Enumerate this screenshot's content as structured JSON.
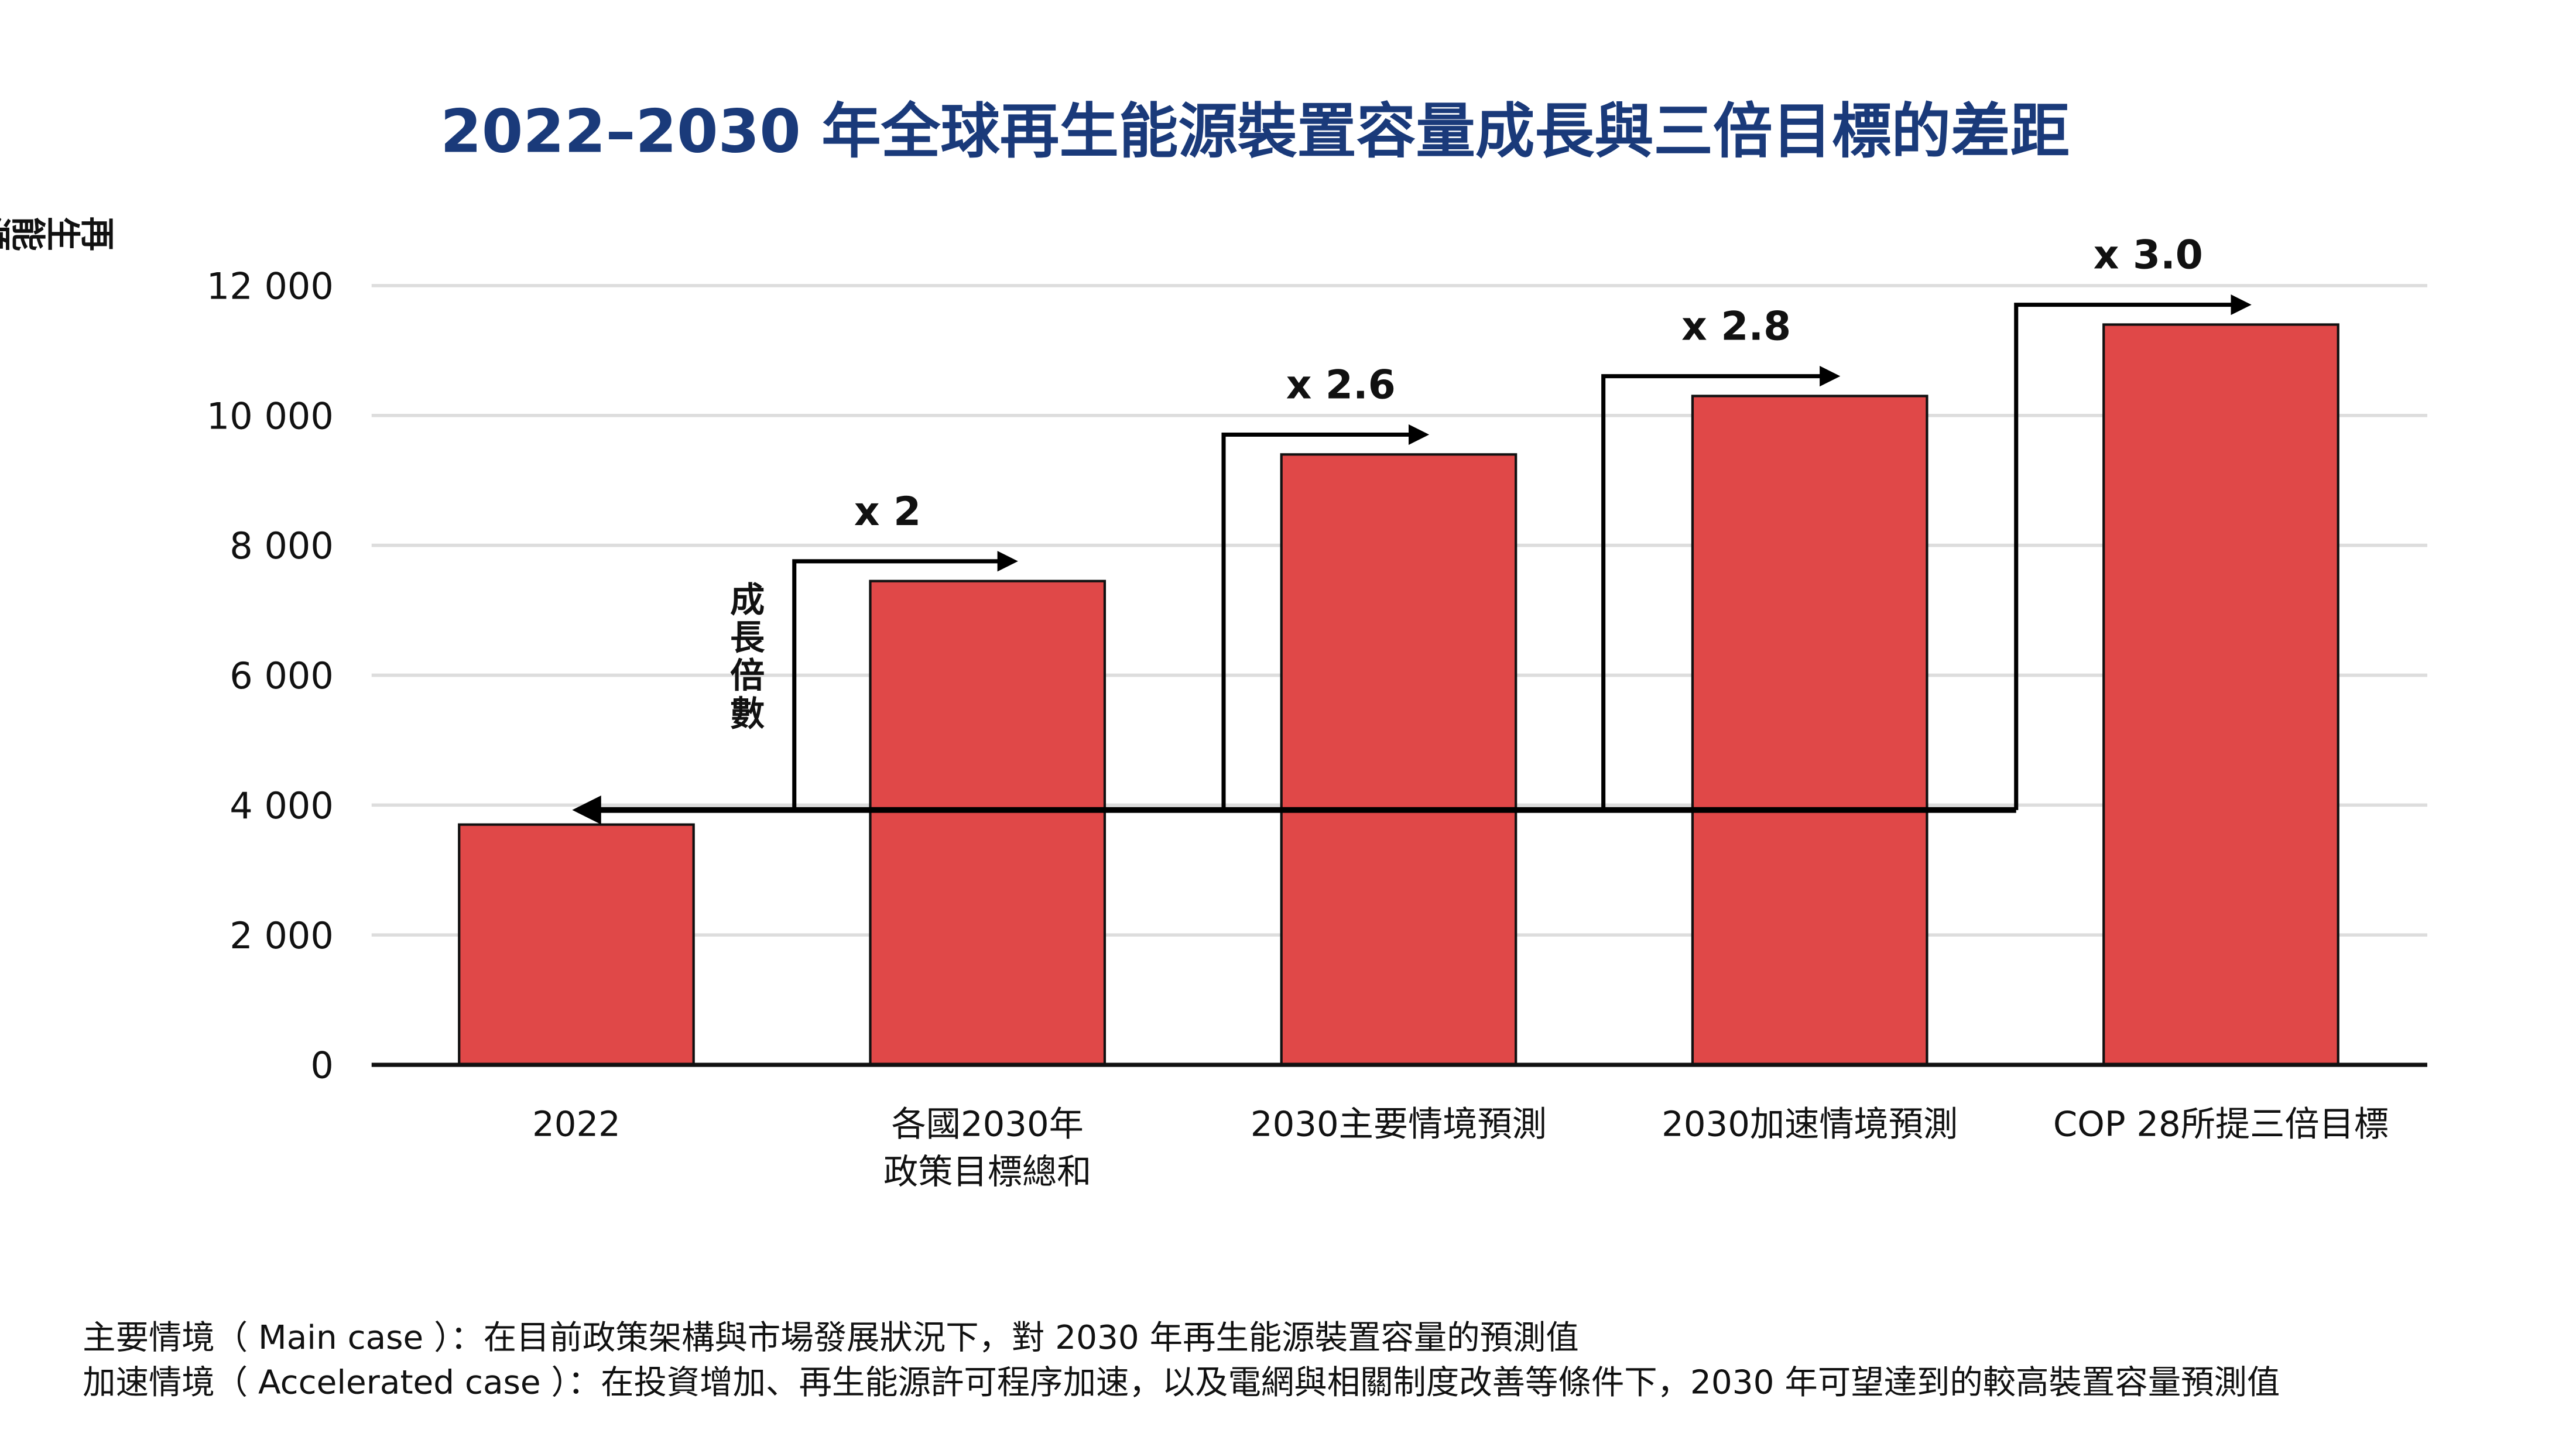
{
  "chart_data": {
    "type": "bar",
    "title": "2022–2030 年全球再生能源裝置容量成長與三倍目標的差距",
    "ylabel": "再生能源裝置容量（百萬瓩，GW）",
    "xlabel": "",
    "ylim": [
      0,
      12000
    ],
    "yticks": [
      0,
      2000,
      4000,
      6000,
      8000,
      10000,
      12000
    ],
    "ytick_labels": [
      "0",
      "2 000",
      "4 000",
      "6 000",
      "8 000",
      "10 000",
      "12 000"
    ],
    "grid": true,
    "categories": [
      [
        "2022"
      ],
      [
        "各國2030年",
        "政策目標總和"
      ],
      [
        "2030主要情境預測"
      ],
      [
        "2030加速情境預測"
      ],
      [
        "COP 28所提三倍目標"
      ]
    ],
    "values": [
      3700,
      7450,
      9400,
      10300,
      11400
    ],
    "baseline_value": 3950,
    "multipliers": [
      "x 2",
      "x 2.6",
      "x 2.8",
      "x 3.0"
    ],
    "multiplier_axis_label": "成長倍數",
    "colors": {
      "bar": "#e04848",
      "title": "#1a3a7a",
      "arrow": "#000000",
      "grid": "#dddddd"
    }
  },
  "notes": [
    "主要情境（ Main case ）：在目前政策架構與市場發展狀況下，對 2030 年再生能源裝置容量的預測值",
    "加速情境（ Accelerated case ）：在投資增加、再生能源許可程序加速，以及電網與相關制度改善等條件下，2030 年可望達到的較高裝置容量預測值"
  ]
}
